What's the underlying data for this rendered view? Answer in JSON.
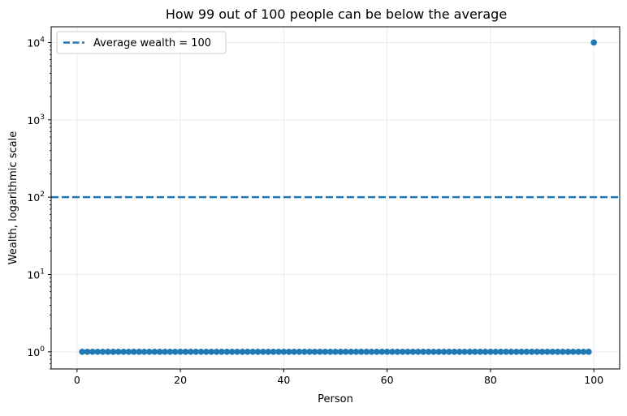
{
  "chart_data": {
    "type": "scatter",
    "title": "How 99 out of 100 people can be below the average",
    "xlabel": "Person",
    "ylabel": "Wealth, logarithmic scale",
    "xlim": [
      -5,
      105
    ],
    "ylim": [
      0.6,
      16000
    ],
    "yscale": "log",
    "grid": true,
    "legend_position": "top-left",
    "x_ticks": [
      0,
      20,
      40,
      60,
      80,
      100
    ],
    "y_ticks": [
      {
        "value": 1,
        "base": "10",
        "exp": "0"
      },
      {
        "value": 10,
        "base": "10",
        "exp": "1"
      },
      {
        "value": 100,
        "base": "10",
        "exp": "2"
      },
      {
        "value": 1000,
        "base": "10",
        "exp": "3"
      },
      {
        "value": 10000,
        "base": "10",
        "exp": "4"
      }
    ],
    "series": [
      {
        "color": "#1f77b4",
        "x": [
          1,
          2,
          3,
          4,
          5,
          6,
          7,
          8,
          9,
          10,
          11,
          12,
          13,
          14,
          15,
          16,
          17,
          18,
          19,
          20,
          21,
          22,
          23,
          24,
          25,
          26,
          27,
          28,
          29,
          30,
          31,
          32,
          33,
          34,
          35,
          36,
          37,
          38,
          39,
          40,
          41,
          42,
          43,
          44,
          45,
          46,
          47,
          48,
          49,
          50,
          51,
          52,
          53,
          54,
          55,
          56,
          57,
          58,
          59,
          60,
          61,
          62,
          63,
          64,
          65,
          66,
          67,
          68,
          69,
          70,
          71,
          72,
          73,
          74,
          75,
          76,
          77,
          78,
          79,
          80,
          81,
          82,
          83,
          84,
          85,
          86,
          87,
          88,
          89,
          90,
          91,
          92,
          93,
          94,
          95,
          96,
          97,
          98,
          99,
          100
        ],
        "y": [
          1,
          1,
          1,
          1,
          1,
          1,
          1,
          1,
          1,
          1,
          1,
          1,
          1,
          1,
          1,
          1,
          1,
          1,
          1,
          1,
          1,
          1,
          1,
          1,
          1,
          1,
          1,
          1,
          1,
          1,
          1,
          1,
          1,
          1,
          1,
          1,
          1,
          1,
          1,
          1,
          1,
          1,
          1,
          1,
          1,
          1,
          1,
          1,
          1,
          1,
          1,
          1,
          1,
          1,
          1,
          1,
          1,
          1,
          1,
          1,
          1,
          1,
          1,
          1,
          1,
          1,
          1,
          1,
          1,
          1,
          1,
          1,
          1,
          1,
          1,
          1,
          1,
          1,
          1,
          1,
          1,
          1,
          1,
          1,
          1,
          1,
          1,
          1,
          1,
          1,
          1,
          1,
          1,
          1,
          1,
          1,
          1,
          1,
          1,
          10000
        ]
      }
    ],
    "reference_line": {
      "orientation": "horizontal",
      "y": 100,
      "style": "dashed",
      "color": "#1f77b4",
      "label": "Average wealth = 100"
    }
  }
}
